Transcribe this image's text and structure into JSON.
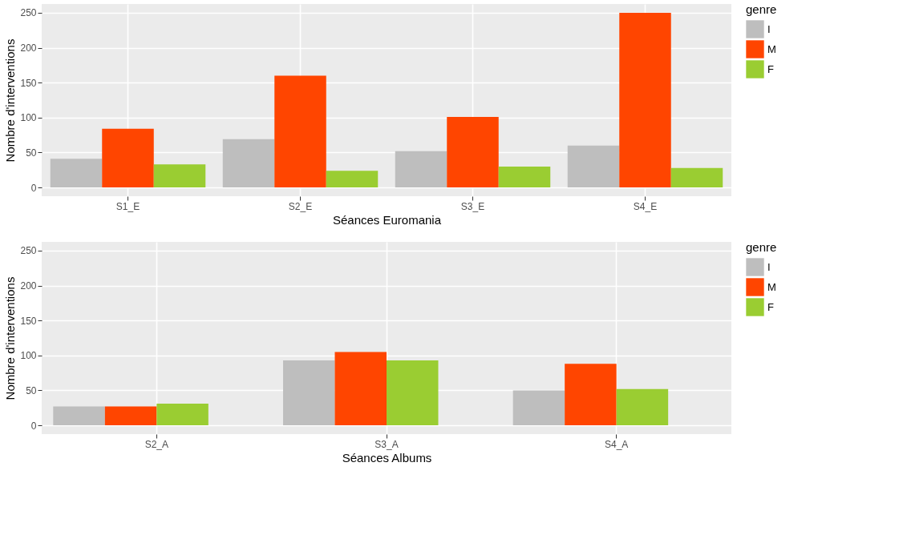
{
  "chart_data": [
    {
      "type": "bar",
      "categories": [
        "S1_E",
        "S2_E",
        "S3_E",
        "S4_E"
      ],
      "xlabel": "Séances Euromania",
      "ylabel": "Nombre d'interventions",
      "legend_title": "genre",
      "legend": "right",
      "grid": true,
      "ylim": [
        -12.5,
        262.5
      ],
      "yticks": [
        0,
        50,
        100,
        150,
        200,
        250
      ],
      "series": [
        {
          "name": "I",
          "color": "#bebebe",
          "values": [
            41,
            69,
            52,
            60
          ]
        },
        {
          "name": "M",
          "color": "#ff4500",
          "values": [
            84,
            160,
            101,
            250
          ]
        },
        {
          "name": "F",
          "color": "#9acd32",
          "values": [
            33,
            24,
            30,
            28
          ]
        }
      ]
    },
    {
      "type": "bar",
      "categories": [
        "S2_A",
        "S3_A",
        "S4_A"
      ],
      "xlabel": "Séances Albums",
      "ylabel": "Nombre d'interventions",
      "legend_title": "genre",
      "legend": "right",
      "grid": true,
      "ylim": [
        -12.5,
        262.5
      ],
      "yticks": [
        0,
        50,
        100,
        150,
        200,
        250
      ],
      "series": [
        {
          "name": "I",
          "color": "#bebebe",
          "values": [
            27,
            93,
            50
          ]
        },
        {
          "name": "M",
          "color": "#ff4500",
          "values": [
            27,
            105,
            88
          ]
        },
        {
          "name": "F",
          "color": "#9acd32",
          "values": [
            31,
            93,
            52
          ]
        }
      ]
    }
  ]
}
